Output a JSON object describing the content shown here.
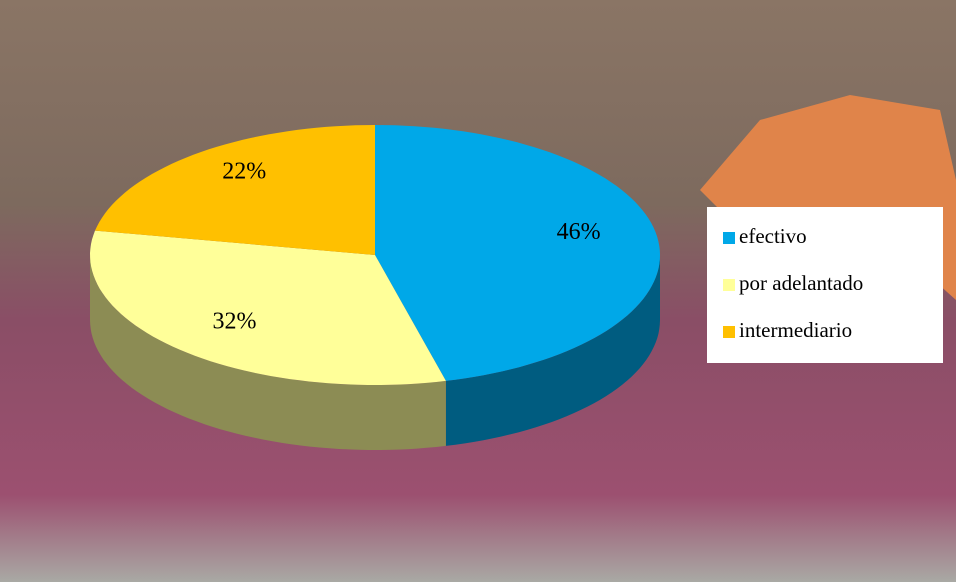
{
  "chart_data": {
    "type": "pie",
    "categories": [
      "efectivo",
      "por adelantado",
      "intermediario"
    ],
    "values": [
      46,
      32,
      22
    ],
    "value_labels": [
      "46%",
      "32%",
      "22%"
    ],
    "colors": [
      "#00a8e8",
      "#ffff99",
      "#ffc000"
    ],
    "legend": "right"
  }
}
